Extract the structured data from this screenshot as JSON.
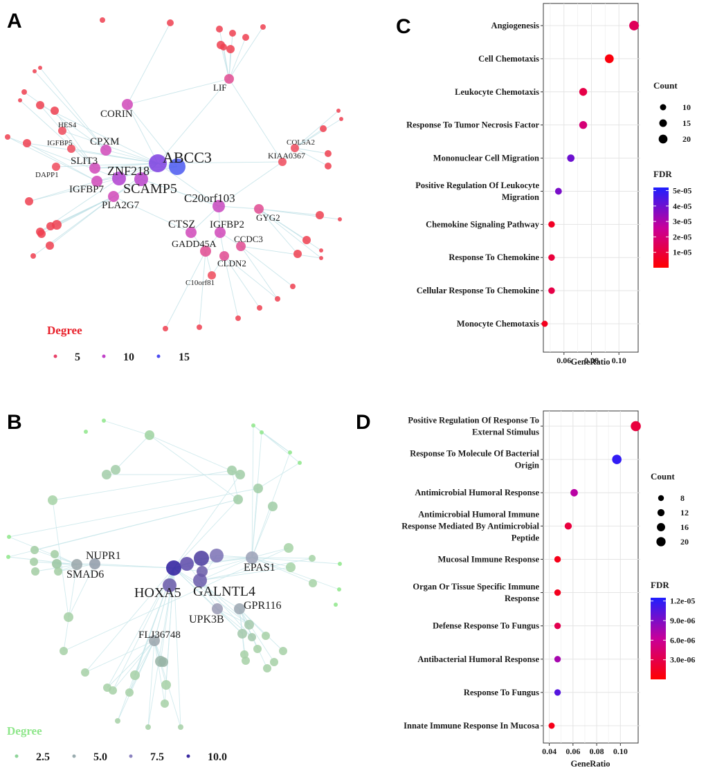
{
  "panel_labels": {
    "a": "A",
    "b": "B",
    "c": "C",
    "d": "D"
  },
  "chart_data": [
    {
      "id": "A",
      "type": "network",
      "legend": {
        "title": "Degree",
        "title_color": "#e8202a",
        "entries": [
          "5",
          "10",
          "15"
        ],
        "colors": [
          "#e84068",
          "#c040c8",
          "#4a4af0"
        ]
      },
      "nodes": [
        {
          "label": "ABCC3",
          "degree": 16
        },
        {
          "label": "ZNF218",
          "degree": 13
        },
        {
          "label": "SCAMP5",
          "degree": 12
        },
        {
          "label": "CORIN",
          "degree": 9
        },
        {
          "label": "CPXM",
          "degree": 9
        },
        {
          "label": "SLIT3",
          "degree": 9
        },
        {
          "label": "IGFBP7",
          "degree": 9
        },
        {
          "label": "PLA2G7",
          "degree": 9
        },
        {
          "label": "C20orf103",
          "degree": 10
        },
        {
          "label": "IGFBP2",
          "degree": 9
        },
        {
          "label": "CTSZ",
          "degree": 9
        },
        {
          "label": "GADD45A",
          "degree": 8
        },
        {
          "label": "LIF",
          "degree": 7
        },
        {
          "label": "GYG2",
          "degree": 7
        },
        {
          "label": "CCDC3",
          "degree": 6
        },
        {
          "label": "CLDN2",
          "degree": 7
        },
        {
          "label": "KIAA0367",
          "degree": 5
        },
        {
          "label": "COL5A2",
          "degree": 4
        },
        {
          "label": "HES4",
          "degree": 5
        },
        {
          "label": "IGFBP5",
          "degree": 5
        },
        {
          "label": "DAPP1",
          "degree": 5
        },
        {
          "label": "C10orf81",
          "degree": 4
        }
      ]
    },
    {
      "id": "B",
      "type": "network",
      "legend": {
        "title": "Degree",
        "title_color": "#8ee68a",
        "entries": [
          "2.5",
          "5.0",
          "7.5",
          "10.0"
        ],
        "colors": [
          "#8fd49a",
          "#9aacb0",
          "#8c84c0",
          "#3a2aa0"
        ]
      },
      "nodes": [
        {
          "label": "HOXA5",
          "degree": 10
        },
        {
          "label": "GALNTL4",
          "degree": 9
        },
        {
          "label": "NUPR1",
          "degree": 5
        },
        {
          "label": "SMAD6",
          "degree": 5
        },
        {
          "label": "EPAS1",
          "degree": 6
        },
        {
          "label": "GPR116",
          "degree": 5
        },
        {
          "label": "UPK3B",
          "degree": 6
        },
        {
          "label": "FLJ36748",
          "degree": 5
        }
      ]
    },
    {
      "id": "C",
      "type": "scatter",
      "xlabel": "GeneRatio",
      "xlim": [
        0.045,
        0.114
      ],
      "xticks": [
        0.06,
        0.08,
        0.1
      ],
      "xtick_labels": [
        "0.06",
        "0.08",
        "0.10"
      ],
      "categories": [
        "Angiogenesis",
        "Cell Chemotaxis",
        "Leukocyte Chemotaxis",
        "Response To Tumor Necrosis Factor",
        "Mononuclear Cell Migration",
        "Positive Regulation Of Leukocyte Migration",
        "Chemokine Signaling Pathway",
        "Response To Chemokine",
        "Cellular Response To Chemokine",
        "Monocyte Chemotaxis"
      ],
      "category_lines": [
        [
          "Angiogenesis"
        ],
        [
          "Cell Chemotaxis"
        ],
        [
          "Leukocyte Chemotaxis"
        ],
        [
          "Response To Tumor Necrosis Factor"
        ],
        [
          "Mononuclear Cell Migration"
        ],
        [
          "Positive Regulation Of Leukocyte",
          "Migration"
        ],
        [
          "Chemokine Signaling Pathway"
        ],
        [
          "Response To Chemokine"
        ],
        [
          "Cellular Response To Chemokine"
        ],
        [
          "Monocyte Chemotaxis"
        ]
      ],
      "gene_ratio": [
        0.111,
        0.093,
        0.074,
        0.074,
        0.065,
        0.056,
        0.051,
        0.051,
        0.051,
        0.046
      ],
      "count": [
        24,
        20,
        16,
        16,
        14,
        12,
        11,
        11,
        11,
        10
      ],
      "fdr": [
        1.5e-05,
        2e-06,
        1.2e-05,
        2e-05,
        4e-05,
        3.8e-05,
        6e-06,
        1e-05,
        1.2e-05,
        5e-06
      ],
      "legend_count": {
        "title": "Count",
        "values": [
          10,
          15,
          20
        ],
        "labels": [
          "10",
          "15",
          "20"
        ]
      },
      "legend_fdr": {
        "title": "FDR",
        "range": [
          0,
          5.2e-05
        ],
        "ticks": [
          1e-05,
          2e-05,
          3e-05,
          4e-05,
          5e-05
        ],
        "labels": [
          "1e-05",
          "2e-05",
          "3e-05",
          "4e-05",
          "5e-05"
        ]
      }
    },
    {
      "id": "D",
      "type": "scatter",
      "xlabel": "GeneRatio",
      "xlim": [
        0.035,
        0.115
      ],
      "xticks": [
        0.04,
        0.06,
        0.08,
        0.1
      ],
      "xtick_labels": [
        "0.04",
        "0.06",
        "0.08",
        "0.10"
      ],
      "categories": [
        "Positive Regulation Of Response To External Stimulus",
        "Response To Molecule Of Bacterial Origin",
        "Antimicrobial Humoral Response",
        "Antimicrobial Humoral Immune Response Mediated By Antimicrobial Peptide",
        "Mucosal Immune Response",
        "Organ Or Tissue Specific Immune Response",
        "Defense Response To Fungus",
        "Antibacterial Humoral Response",
        "Response To Fungus",
        "Innate Immune Response In Mucosa"
      ],
      "category_lines": [
        [
          "Positive Regulation Of Response To",
          "External Stimulus"
        ],
        [
          "Response To Molecule Of Bacterial",
          "Origin"
        ],
        [
          "Antimicrobial Humoral Response"
        ],
        [
          "Antimicrobial Humoral Immune",
          "Response Mediated By Antimicrobial",
          "Peptide"
        ],
        [
          "Mucosal Immune Response"
        ],
        [
          "Organ Or Tissue Specific Immune",
          "Response"
        ],
        [
          "Defense Response To Fungus"
        ],
        [
          "Antibacterial Humoral Response"
        ],
        [
          "Response To Fungus"
        ],
        [
          "Innate Immune Response In Mucosa"
        ]
      ],
      "gene_ratio": [
        0.113,
        0.097,
        0.061,
        0.056,
        0.047,
        0.047,
        0.047,
        0.047,
        0.047,
        0.042
      ],
      "count": [
        24,
        21,
        13,
        12,
        10,
        10,
        10,
        10,
        10,
        9
      ],
      "fdr": [
        2.5e-06,
        1.18e-05,
        6.8e-06,
        2.5e-06,
        1e-06,
        1.2e-06,
        3.2e-06,
        7.5e-06,
        1.05e-05,
        1e-06
      ],
      "legend_count": {
        "title": "Count",
        "values": [
          8,
          12,
          16,
          20
        ],
        "labels": [
          "8",
          "12",
          "16",
          "20"
        ]
      },
      "legend_fdr": {
        "title": "FDR",
        "range": [
          0,
          1.25e-05
        ],
        "ticks": [
          3e-06,
          6e-06,
          9e-06,
          1.2e-05
        ],
        "labels": [
          "3.0e-06",
          "6.0e-06",
          "9.0e-06",
          "1.2e-05"
        ]
      }
    }
  ]
}
